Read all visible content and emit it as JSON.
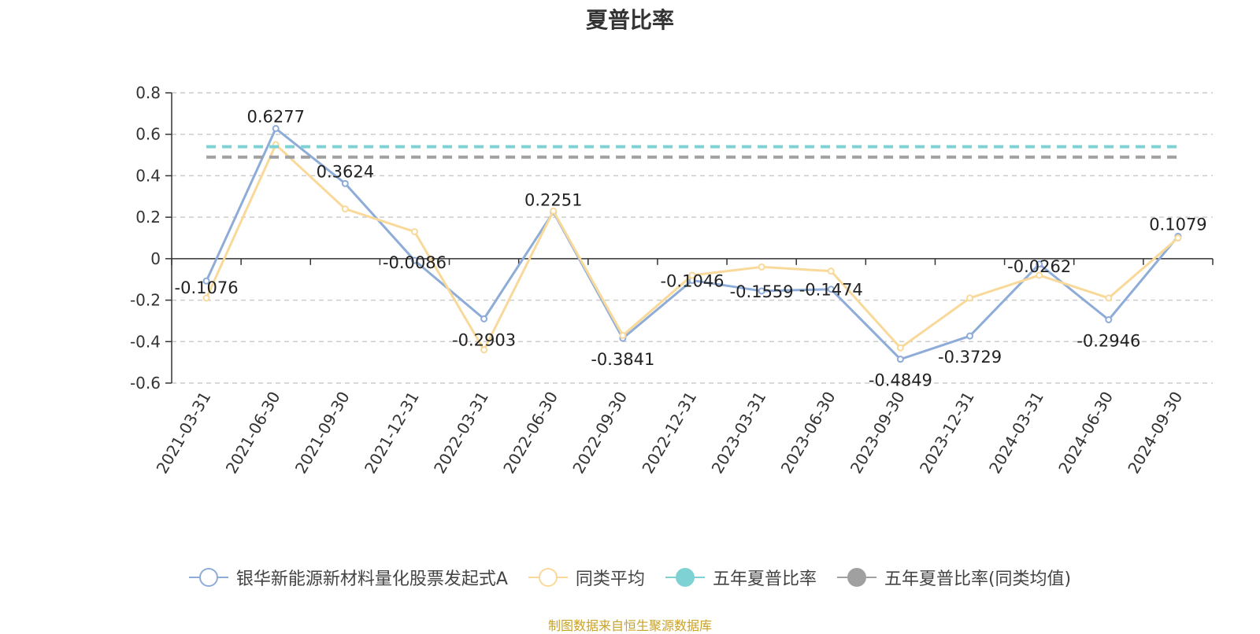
{
  "title": "夏普比率",
  "source_note": "制图数据来自恒生聚源数据库",
  "colors": {
    "fund": "#8eacd8",
    "category_avg": "#f9d99a",
    "five_year": "#7fd2d4",
    "five_year_category": "#a0a0a0",
    "axis": "#333333",
    "grid": "#cccccc",
    "label": "#222222",
    "source": "#c9a227"
  },
  "chart_data": {
    "type": "line",
    "title": "夏普比率",
    "categories": [
      "2021-03-31",
      "2021-06-30",
      "2021-09-30",
      "2021-12-31",
      "2022-03-31",
      "2022-06-30",
      "2022-09-30",
      "2022-12-31",
      "2023-03-31",
      "2023-06-30",
      "2023-09-30",
      "2023-12-31",
      "2024-03-31",
      "2024-06-30",
      "2024-09-30"
    ],
    "ylim": [
      -0.6,
      0.8
    ],
    "yticks": [
      0.8,
      0.6,
      0.4,
      0.2,
      0,
      -0.2,
      -0.4,
      -0.6
    ],
    "ytick_labels": [
      "0.8",
      "0.6",
      "0.4",
      "0.2",
      "0",
      "-0.2",
      "-0.4",
      "-0.6"
    ],
    "grid": "horizontal dashed",
    "legend_position": "bottom-center",
    "series": [
      {
        "name": "银华新能源新材料量化股票发起式A",
        "color": "#8eacd8",
        "style": "line-with-labels",
        "values": [
          -0.1076,
          0.6277,
          0.3624,
          -0.0086,
          -0.2903,
          0.2251,
          -0.3841,
          -0.1046,
          -0.1559,
          -0.1474,
          -0.4849,
          -0.3729,
          -0.0262,
          -0.2946,
          0.1079
        ],
        "labels": [
          "-0.1076",
          "0.6277",
          "0.3624",
          "-0.0086",
          "-0.2903",
          "0.2251",
          "-0.3841",
          "-0.1046",
          "-0.1559",
          "-0.1474",
          "-0.4849",
          "-0.3729",
          "-0.0262",
          "-0.2946",
          "0.1079"
        ]
      },
      {
        "name": "同类平均",
        "color": "#f9d99a",
        "style": "line-with-markers",
        "values": [
          -0.19,
          0.55,
          0.24,
          0.13,
          -0.44,
          0.23,
          -0.37,
          -0.08,
          -0.04,
          -0.06,
          -0.43,
          -0.19,
          -0.08,
          -0.19,
          0.1
        ]
      },
      {
        "name": "五年夏普比率",
        "color": "#7fd2d4",
        "style": "dashed-constant",
        "value": 0.54
      },
      {
        "name": "五年夏普比率(同类均值)",
        "color": "#a0a0a0",
        "style": "dashed-constant",
        "value": 0.49
      }
    ]
  }
}
